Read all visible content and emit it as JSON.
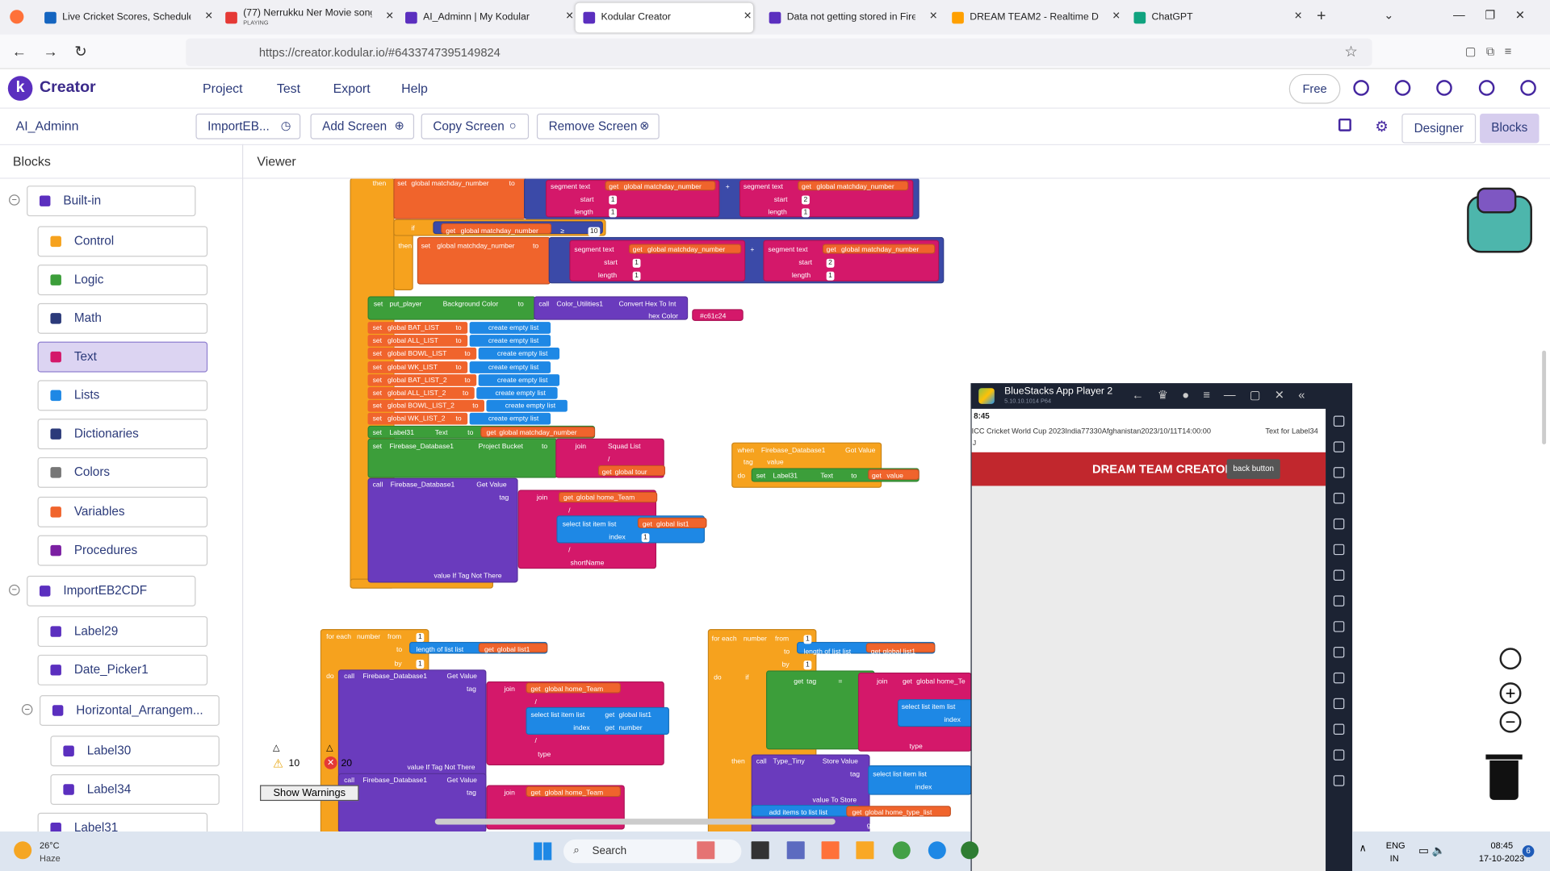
{
  "browser": {
    "tabs": [
      "Live Cricket Scores, Schedules, L",
      "(77) Nerrukku Ner Movie songs",
      "AI_Adminn | My Kodular",
      "Kodular Creator",
      "Data not getting stored in Fireb",
      "DREAM TEAM2 - Realtime Datab",
      "ChatGPT"
    ],
    "tab_status": "PLAYING",
    "url": "https://creator.kodular.io/#6433747395149824"
  },
  "app": {
    "brand": "Creator",
    "menu": [
      "Project",
      "Test",
      "Export",
      "Help"
    ],
    "plan": "Free",
    "project": "AI_Adminn",
    "screen_buttons": [
      "ImportEB...",
      "Add Screen",
      "Copy Screen",
      "Remove Screen"
    ],
    "modes": [
      "Designer",
      "Blocks"
    ]
  },
  "sidebar": {
    "title": "Blocks",
    "items": [
      "Built-in",
      "Control",
      "Logic",
      "Math",
      "Text",
      "Lists",
      "Dictionaries",
      "Colors",
      "Variables",
      "Procedures",
      "ImportEB2CDF",
      "Label29",
      "Date_Picker1",
      "Horizontal_Arrangem...",
      "Label30",
      "Label34",
      "Label31"
    ]
  },
  "viewer": {
    "title": "Viewer",
    "warnings": "10",
    "errors": "20",
    "show_warnings": "Show Warnings",
    "list_sets": [
      {
        "set": "set",
        "var": "global BAT_LIST",
        "to": "to",
        "value": "create empty list"
      },
      {
        "set": "set",
        "var": "global ALL_LIST",
        "to": "to",
        "value": "create empty list"
      },
      {
        "set": "set",
        "var": "global BOWL_LIST",
        "to": "to",
        "value": "create empty list"
      },
      {
        "set": "set",
        "var": "global WK_LIST",
        "to": "to",
        "value": "create empty list"
      },
      {
        "set": "set",
        "var": "global BAT_LIST_2",
        "to": "to",
        "value": "create empty list"
      },
      {
        "set": "set",
        "var": "global ALL_LIST_2",
        "to": "to",
        "value": "create empty list"
      },
      {
        "set": "set",
        "var": "global BOWL_LIST_2",
        "to": "to",
        "value": "create empty list"
      },
      {
        "set": "set",
        "var": "global WK_LIST_2",
        "to": "to",
        "value": "create empty list"
      }
    ],
    "blocks": [
      "then",
      "set",
      "global matchday_number",
      "to",
      "segment  text",
      "get",
      "global matchday_number",
      "start",
      "1",
      "length",
      "1",
      "+",
      "segment  text",
      "get",
      "global matchday_number",
      "start",
      "2",
      "length",
      "1",
      "if",
      "get",
      "global matchday_number",
      "≥",
      "10",
      "then",
      "set",
      "global matchday_number",
      "to",
      "segment  text",
      "get",
      "global matchday_number",
      "start",
      "1",
      "length",
      "1",
      "+",
      "segment  text",
      "get",
      "global matchday_number",
      "start",
      "2",
      "length",
      "1",
      "set",
      "put_player",
      "Background Color",
      "to",
      "call",
      "Color_Utilities1",
      "Convert Hex To Int",
      "hex Color",
      "#c61c24",
      "set",
      "Label31",
      "Text",
      "to",
      "get",
      "global matchday_number",
      "set",
      "Firebase_Database1",
      "Project Bucket",
      "to",
      "join",
      "Squad List",
      "/",
      "get",
      "global tour",
      "call",
      "Firebase_Database1",
      "Get Value",
      "tag",
      "join",
      "get",
      "global home_Team",
      "/",
      "select list item  list",
      "get",
      "global list1",
      "index",
      "1",
      "/",
      "shortName",
      "value If Tag Not There",
      "when",
      "Firebase_Database1",
      "Got Value",
      "tag",
      "value",
      "do",
      "set",
      "Label31",
      "Text",
      "to",
      "get",
      "value",
      "for each",
      "number",
      "from",
      "1",
      "to",
      "length of list  list",
      "get",
      "global list1",
      "by",
      "1",
      "do",
      "call",
      "Firebase_Database1",
      "Get Value",
      "tag",
      "join",
      "get",
      "global home_Team",
      "/",
      "select list item  list",
      "get",
      "global list1",
      "index",
      "get",
      "number",
      "/",
      "type",
      "value If Tag Not There",
      "call",
      "Firebase_Database1",
      "Get Value",
      "tag",
      "join",
      "get",
      "global home_Team",
      "for each",
      "number",
      "from",
      "1",
      "to",
      "length of list  list",
      "get",
      "global list1",
      "by",
      "1",
      "do",
      "if",
      "get",
      "tag",
      "=",
      "join",
      "get",
      "global home_Te",
      "select list item  list",
      "index",
      "type",
      "then",
      "call",
      "Type_Tiny",
      "Store Value",
      "tag",
      "select list item  list",
      "index",
      "value To Store",
      "get",
      "value",
      "add items to list  list",
      "get",
      "global home_type_list",
      "get",
      "value"
    ]
  },
  "emulator": {
    "title": "BlueStacks App Player 2",
    "version": "5.10.10.1014 P64",
    "time": "8:45",
    "label1": "ICC Cricket World Cup 2023India77330Afghanistan2023/10/11T14:00:00",
    "label2": "Text for Label34",
    "label3": "J",
    "header": "DREAM TEAM CREATOR",
    "button": "back button"
  },
  "taskbar": {
    "temp": "26°C",
    "weather": "Haze",
    "search": "Search",
    "lang": "ENG",
    "region": "IN",
    "time": "08:45",
    "date": "17-10-2023",
    "notifications": "6"
  }
}
